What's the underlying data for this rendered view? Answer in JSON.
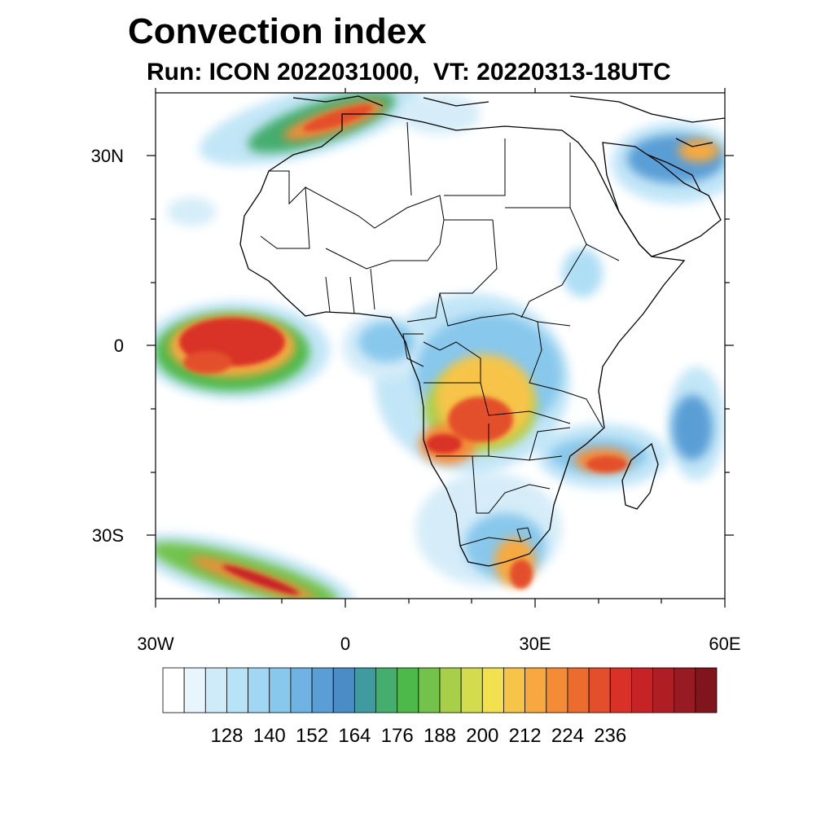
{
  "title": "Convection index",
  "subtitle": "Run: ICON 2022031000,  VT: 20220313-18UTC",
  "map": {
    "lon_range": [
      -30,
      60
    ],
    "lat_range": [
      -40,
      40
    ],
    "lat_ticks": [
      {
        "label": "30N"
      },
      {
        "label": "0"
      },
      {
        "label": "30S"
      }
    ],
    "lon_ticks": [
      {
        "label": "30W"
      },
      {
        "label": "0"
      },
      {
        "label": "30E"
      },
      {
        "label": "60E"
      }
    ]
  },
  "colorbar": {
    "colors": [
      "#ffffff",
      "#e8f5fc",
      "#cfeaf8",
      "#b8e2f6",
      "#a0d8f3",
      "#88c8ec",
      "#6fb3e2",
      "#5a9ed6",
      "#4a8cc6",
      "#3f9ba0",
      "#45ad6e",
      "#4cb94a",
      "#72c24b",
      "#a8cf4a",
      "#d2dc4c",
      "#f1e14f",
      "#f7c44a",
      "#f7a940",
      "#f48b37",
      "#ec6b2f",
      "#e34f2a",
      "#d93128",
      "#c62326",
      "#b01e25",
      "#981a22",
      "#80151e"
    ],
    "labels": [
      "128",
      "140",
      "152",
      "164",
      "176",
      "188",
      "200",
      "212",
      "224",
      "236"
    ]
  }
}
